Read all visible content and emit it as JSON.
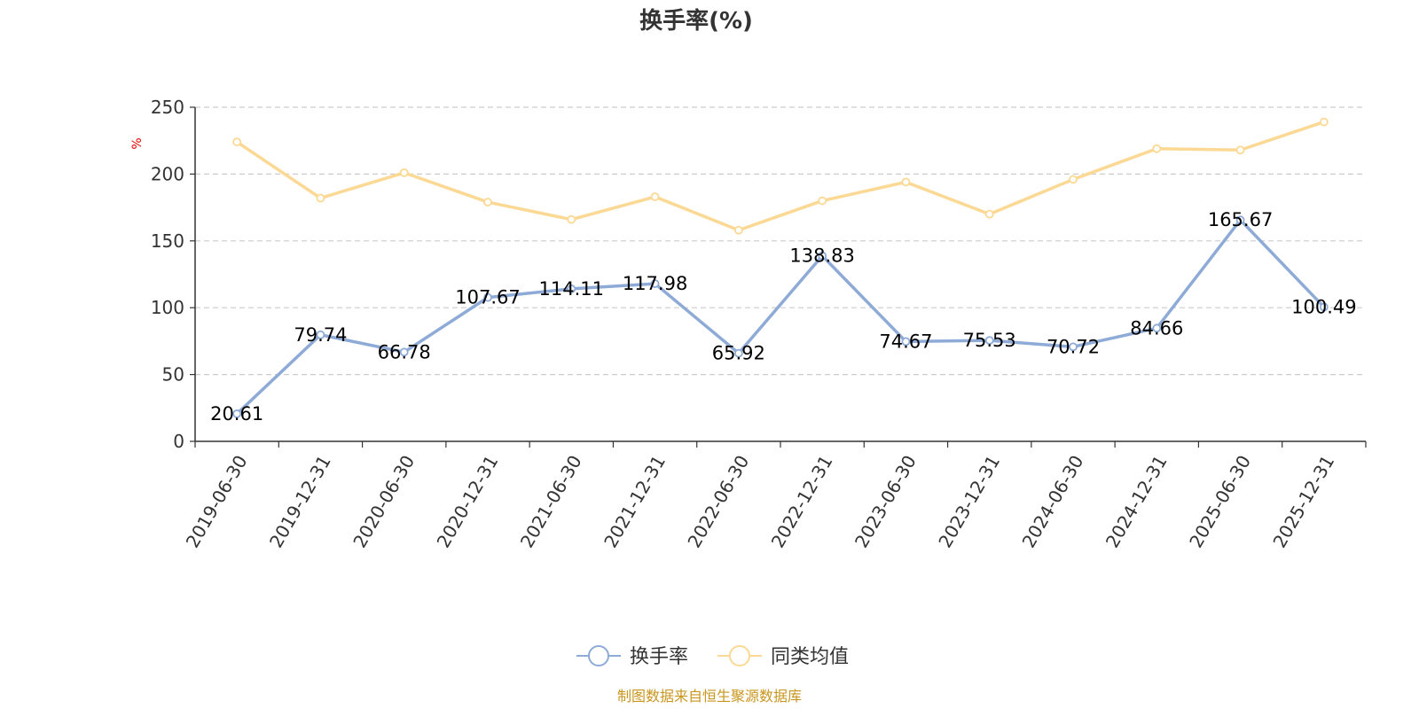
{
  "chart_data": {
    "type": "line",
    "title": "换手率(%)",
    "ylabel": "%",
    "xlabel": "",
    "ylim": [
      0,
      250
    ],
    "yticks": [
      0,
      50,
      100,
      150,
      200,
      250
    ],
    "grid": true,
    "legend_position": "bottom",
    "categories": [
      "2019-06-30",
      "2019-12-31",
      "2020-06-30",
      "2020-12-31",
      "2021-06-30",
      "2021-12-31",
      "2022-06-30",
      "2022-12-31",
      "2023-06-30",
      "2023-12-31",
      "2024-06-30",
      "2024-12-31",
      "2025-06-30",
      "2025-12-31"
    ],
    "series": [
      {
        "name": "换手率",
        "color": "#8eabd7",
        "show_labels": true,
        "values": [
          20.61,
          79.74,
          66.78,
          107.67,
          114.11,
          117.98,
          65.92,
          138.83,
          74.67,
          75.53,
          70.72,
          84.66,
          165.67,
          100.49
        ]
      },
      {
        "name": "同类均值",
        "color": "#fbd994",
        "show_labels": false,
        "values": [
          224,
          182,
          201,
          179,
          166,
          183,
          158,
          180,
          194,
          170,
          196,
          219,
          218,
          239
        ]
      }
    ],
    "source": "制图数据来自恒生聚源数据库"
  }
}
